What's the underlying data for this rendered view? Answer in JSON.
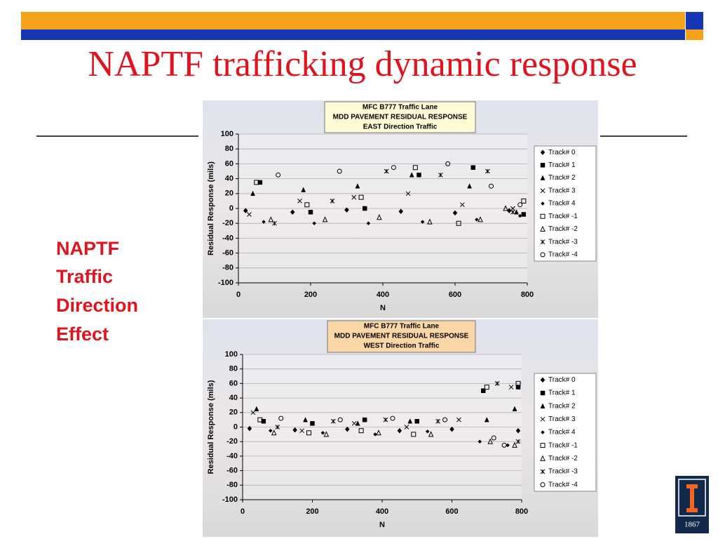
{
  "slide": {
    "title": "NAPTF trafficking dynamic response",
    "side_text": [
      "NAPTF",
      "Traffic",
      "Direction",
      "Effect"
    ],
    "logo_year": "1867"
  },
  "chart_data": [
    {
      "type": "scatter",
      "title_lines": [
        "MFC B777 Traffic Lane",
        "MDD PAVEMENT RESIDUAL RESPONSE",
        "EAST Direction Traffic"
      ],
      "xlabel": "N",
      "ylabel": "Residual Response (mils)",
      "xlim": [
        0,
        800
      ],
      "ylim": [
        -100,
        100
      ],
      "xticks": [
        0,
        200,
        400,
        600,
        800
      ],
      "yticks": [
        -100,
        -80,
        -60,
        -40,
        -20,
        0,
        20,
        40,
        60,
        80,
        100
      ],
      "grid": true,
      "legend": "right",
      "series": [
        {
          "name": "Track# 0",
          "marker": "diamond",
          "color": "#000000",
          "x": [
            20,
            150,
            300,
            450,
            600,
            750
          ],
          "y": [
            -3,
            -5,
            -2,
            -4,
            -6,
            -3
          ]
        },
        {
          "name": "Track# 1",
          "marker": "square",
          "color": "#000000",
          "x": [
            60,
            200,
            350,
            500,
            650,
            790
          ],
          "y": [
            35,
            -5,
            0,
            45,
            55,
            -8
          ]
        },
        {
          "name": "Track# 2",
          "marker": "triangle",
          "color": "#000000",
          "x": [
            40,
            180,
            330,
            480,
            640,
            770
          ],
          "y": [
            20,
            25,
            30,
            45,
            30,
            -5
          ]
        },
        {
          "name": "Track# 3",
          "marker": "x",
          "color": "#000000",
          "x": [
            30,
            170,
            320,
            470,
            620,
            760
          ],
          "y": [
            -8,
            10,
            15,
            20,
            5,
            0
          ]
        },
        {
          "name": "Track# 4",
          "marker": "small-diamond",
          "color": "#000000",
          "x": [
            70,
            210,
            360,
            510,
            660,
            780
          ],
          "y": [
            -18,
            -20,
            -20,
            -18,
            -15,
            -10
          ]
        },
        {
          "name": "Track# -1",
          "marker": "open-square",
          "color": "#000000",
          "x": [
            50,
            190,
            340,
            490,
            610,
            790
          ],
          "y": [
            35,
            5,
            15,
            55,
            -20,
            10
          ]
        },
        {
          "name": "Track# -2",
          "marker": "open-triangle",
          "color": "#000000",
          "x": [
            90,
            240,
            390,
            530,
            670,
            740
          ],
          "y": [
            -15,
            -15,
            -12,
            -18,
            -15,
            0
          ]
        },
        {
          "name": "Track# -3",
          "marker": "asterisk",
          "color": "#000000",
          "x": [
            100,
            260,
            410,
            560,
            690,
            760
          ],
          "y": [
            -20,
            10,
            50,
            45,
            50,
            -5
          ]
        },
        {
          "name": "Track# -4",
          "marker": "open-circle",
          "color": "#000000",
          "x": [
            110,
            280,
            430,
            580,
            700,
            780
          ],
          "y": [
            45,
            50,
            55,
            60,
            30,
            5
          ]
        }
      ]
    },
    {
      "type": "scatter",
      "title_lines": [
        "MFC B777 Traffic Lane",
        "MDD PAVEMENT RESIDUAL RESPONSE",
        "WEST Direction Traffic"
      ],
      "xlabel": "N",
      "ylabel": "Residual Response (mils)",
      "xlim": [
        0,
        800
      ],
      "ylim": [
        -100,
        100
      ],
      "xticks": [
        0,
        200,
        400,
        600,
        800
      ],
      "yticks": [
        -100,
        -80,
        -60,
        -40,
        -20,
        0,
        20,
        40,
        60,
        80,
        100
      ],
      "grid": true,
      "legend": "right",
      "series": [
        {
          "name": "Track# 0",
          "marker": "diamond",
          "color": "#000000",
          "x": [
            20,
            150,
            300,
            450,
            600,
            790
          ],
          "y": [
            -2,
            -4,
            -3,
            -5,
            -3,
            -5
          ]
        },
        {
          "name": "Track# 1",
          "marker": "square",
          "color": "#000000",
          "x": [
            60,
            200,
            350,
            500,
            690,
            790
          ],
          "y": [
            8,
            5,
            10,
            8,
            50,
            55
          ]
        },
        {
          "name": "Track# 2",
          "marker": "triangle",
          "color": "#000000",
          "x": [
            40,
            180,
            330,
            480,
            700,
            780
          ],
          "y": [
            25,
            10,
            5,
            8,
            10,
            25
          ]
        },
        {
          "name": "Track# 3",
          "marker": "x",
          "color": "#000000",
          "x": [
            30,
            170,
            320,
            470,
            620,
            770
          ],
          "y": [
            20,
            -5,
            5,
            0,
            10,
            55
          ]
        },
        {
          "name": "Track# 4",
          "marker": "small-diamond",
          "color": "#000000",
          "x": [
            80,
            230,
            380,
            530,
            680,
            760
          ],
          "y": [
            -5,
            -8,
            -10,
            -6,
            -20,
            -25
          ]
        },
        {
          "name": "Track# -1",
          "marker": "open-square",
          "color": "#000000",
          "x": [
            50,
            190,
            340,
            490,
            700,
            790
          ],
          "y": [
            10,
            -8,
            -5,
            -10,
            55,
            60
          ]
        },
        {
          "name": "Track# -2",
          "marker": "open-triangle",
          "color": "#000000",
          "x": [
            90,
            240,
            390,
            540,
            710,
            780
          ],
          "y": [
            -8,
            -10,
            -8,
            -10,
            -20,
            -25
          ]
        },
        {
          "name": "Track# -3",
          "marker": "asterisk",
          "color": "#000000",
          "x": [
            100,
            260,
            410,
            560,
            730,
            790
          ],
          "y": [
            0,
            8,
            10,
            8,
            60,
            -20
          ]
        },
        {
          "name": "Track# -4",
          "marker": "open-circle",
          "color": "#000000",
          "x": [
            110,
            280,
            430,
            580,
            720,
            750
          ],
          "y": [
            12,
            10,
            12,
            10,
            -15,
            -25
          ]
        }
      ]
    }
  ]
}
